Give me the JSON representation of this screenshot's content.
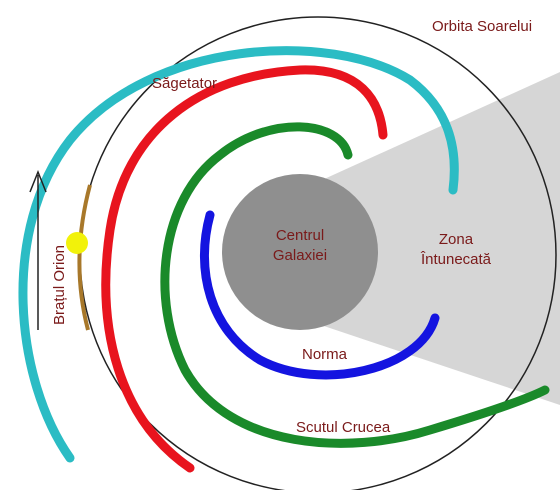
{
  "labels": {
    "orbit": "Orbita Soarelui",
    "sagittarius": "Săgetator",
    "center": [
      "Centrul",
      "Galaxiei"
    ],
    "dark_zone": [
      "Zona",
      "Întunecată"
    ],
    "norma": "Norma",
    "scutum": "Scutul Crucea",
    "orion": "Brațul Orion"
  }
}
